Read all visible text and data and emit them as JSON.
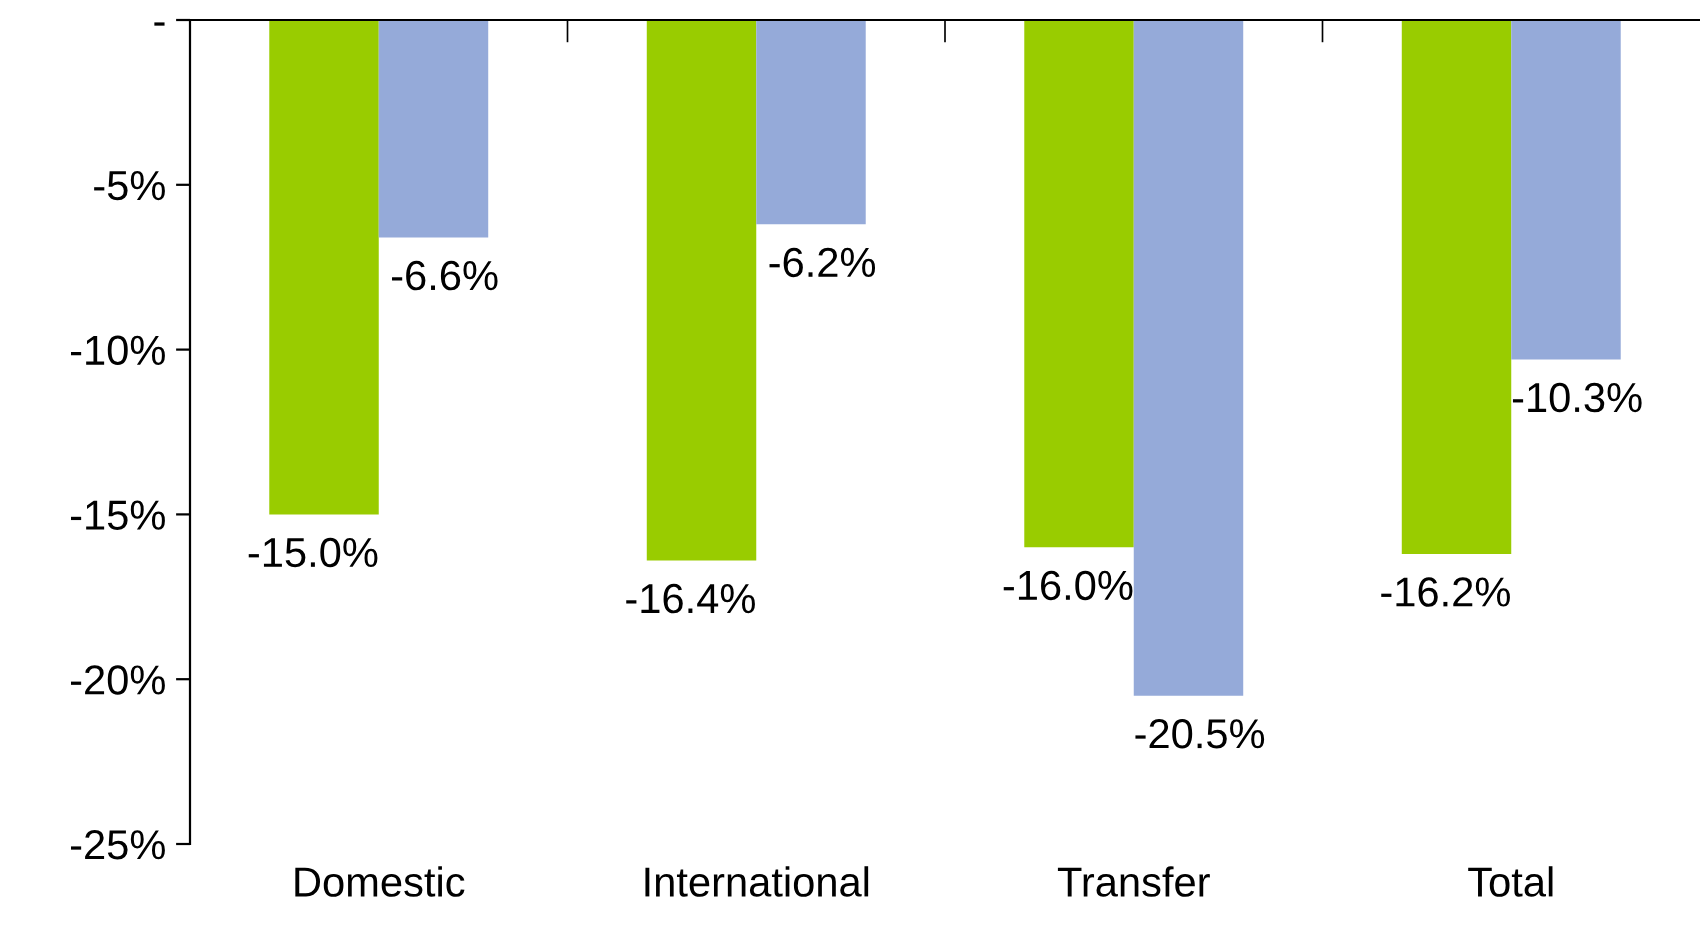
{
  "chart_data": {
    "type": "bar",
    "categories": [
      "Domestic",
      "International",
      "Transfer",
      "Total"
    ],
    "series": [
      {
        "color": "#99cc00",
        "values": [
          -15.0,
          -16.4,
          -16.0,
          -16.2
        ],
        "value_labels": [
          "-15.0%",
          "-16.4%",
          "-16.0%",
          "-16.2%"
        ]
      },
      {
        "color": "#95aad9",
        "values": [
          -6.6,
          -6.2,
          -20.5,
          -10.3
        ],
        "value_labels": [
          "-6.6%",
          "-6.2%",
          "-20.5%",
          "-10.3%"
        ]
      }
    ],
    "ylim": [
      -25,
      0
    ],
    "yticks": [
      {
        "value": 0,
        "label": "-"
      },
      {
        "value": -5,
        "label": "-5%"
      },
      {
        "value": -10,
        "label": "-10%"
      },
      {
        "value": -15,
        "label": "-15%"
      },
      {
        "value": -20,
        "label": "-20%"
      },
      {
        "value": -25,
        "label": "-25%"
      }
    ],
    "grid": false,
    "legend": false
  }
}
